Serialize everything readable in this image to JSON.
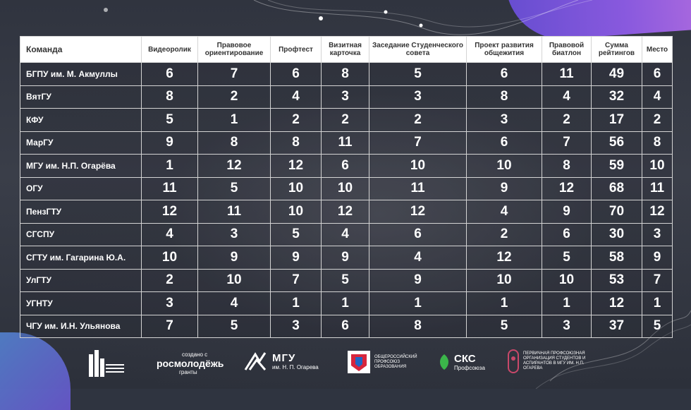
{
  "table": {
    "headers": [
      "Команда",
      "Видеоролик",
      "Правовое ориентирование",
      "Профтест",
      "Визитная карточка",
      "Заседание Студенческого совета",
      "Проект развития общежития",
      "Правовой биатлон",
      "Сумма рейтингов",
      "Место"
    ],
    "rows": [
      {
        "team": "БГПУ им. М. Акмуллы",
        "values": [
          "6",
          "7",
          "6",
          "8",
          "5",
          "6",
          "11",
          "49",
          "6"
        ]
      },
      {
        "team": "ВятГУ",
        "values": [
          "8",
          "2",
          "4",
          "3",
          "3",
          "8",
          "4",
          "32",
          "4"
        ]
      },
      {
        "team": "КФУ",
        "values": [
          "5",
          "1",
          "2",
          "2",
          "2",
          "3",
          "2",
          "17",
          "2"
        ]
      },
      {
        "team": "МарГУ",
        "values": [
          "9",
          "8",
          "8",
          "11",
          "7",
          "6",
          "7",
          "56",
          "8"
        ]
      },
      {
        "team": "МГУ им. Н.П. Огарёва",
        "values": [
          "1",
          "12",
          "12",
          "6",
          "10",
          "10",
          "8",
          "59",
          "10"
        ]
      },
      {
        "team": "ОГУ",
        "values": [
          "11",
          "5",
          "10",
          "10",
          "11",
          "9",
          "12",
          "68",
          "11"
        ]
      },
      {
        "team": "ПензГТУ",
        "values": [
          "12",
          "11",
          "10",
          "12",
          "12",
          "4",
          "9",
          "70",
          "12"
        ]
      },
      {
        "team": "СГСПУ",
        "values": [
          "4",
          "3",
          "5",
          "4",
          "6",
          "2",
          "6",
          "30",
          "3"
        ]
      },
      {
        "team": "СГТУ им. Гагарина Ю.А.",
        "values": [
          "10",
          "9",
          "9",
          "9",
          "4",
          "12",
          "5",
          "58",
          "9"
        ]
      },
      {
        "team": "УлГТУ",
        "values": [
          "2",
          "10",
          "7",
          "5",
          "9",
          "10",
          "10",
          "53",
          "7"
        ]
      },
      {
        "team": "УГНТУ",
        "values": [
          "3",
          "4",
          "1",
          "1",
          "1",
          "1",
          "1",
          "12",
          "1"
        ]
      },
      {
        "team": "ЧГУ им. И.Н. Ульянова",
        "values": [
          "7",
          "5",
          "3",
          "6",
          "8",
          "5",
          "3",
          "37",
          "5"
        ]
      }
    ]
  },
  "footer": {
    "rosmolodezh_small": "создано с",
    "rosmolodezh_main": "росмолодёжь",
    "rosmolodezh_sub": "гранты",
    "mgu_main": "МГУ",
    "mgu_sub": "им. Н. П. Огарева",
    "profsoyuz_text": "ОБЩЕРОССИЙСКИЙ ПРОФСОЮЗ ОБРАЗОВАНИЯ",
    "sks_main": "СКС",
    "sks_sub": "Профсоюза",
    "ppo_text": "ПЕРВИЧНАЯ ПРОФСОЮЗНАЯ ОРГАНИЗАЦИЯ СТУДЕНТОВ И АСПИРАНТОВ В МГУ ИМ. Н.П. ОГАРЕВА"
  },
  "colors": {
    "background": "#2f3440",
    "blob_purple": "#8d5be6",
    "blob_blue": "#4f8fd6",
    "profsoyuz_red": "#d7263d",
    "sks_green": "#3bb54a"
  }
}
